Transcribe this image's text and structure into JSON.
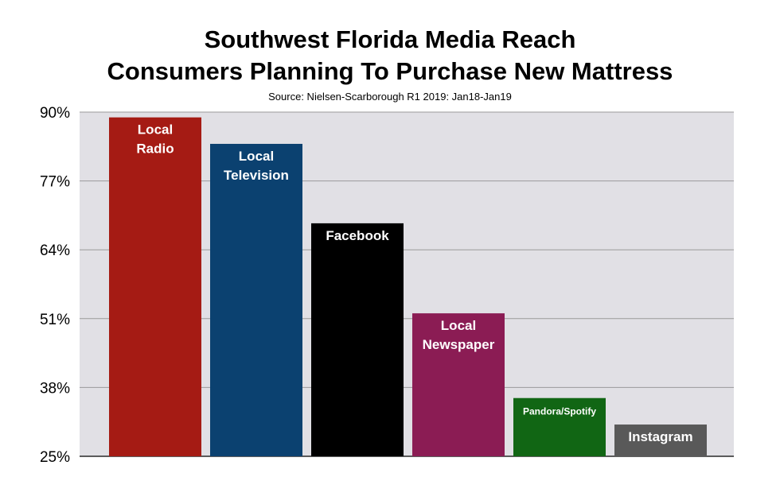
{
  "chart_data": {
    "type": "bar",
    "title": "Southwest Florida Media Reach",
    "subtitle": "Consumers Planning To Purchase New Mattress",
    "source": "Source: Nielsen-Scarborough R1 2019: Jan18-Jan19",
    "categories": [
      [
        "Local",
        "Radio"
      ],
      [
        "Local",
        "Television"
      ],
      [
        "Facebook"
      ],
      [
        "Local",
        "Newspaper"
      ],
      [
        "Pandora/Spotify"
      ],
      [
        "Instagram"
      ]
    ],
    "values": [
      89,
      84,
      69,
      52,
      36,
      31
    ],
    "colors": [
      "#a51b14",
      "#0b4170",
      "#000000",
      "#8b1c54",
      "#116614",
      "#595959"
    ],
    "ylim": [
      25,
      90
    ],
    "yticks": [
      "90%",
      "77%",
      "64%",
      "51%",
      "38%",
      "25%"
    ],
    "ytick_values": [
      90,
      77,
      64,
      51,
      38,
      25
    ],
    "grid": true,
    "plot_background": "#e1e0e5"
  }
}
